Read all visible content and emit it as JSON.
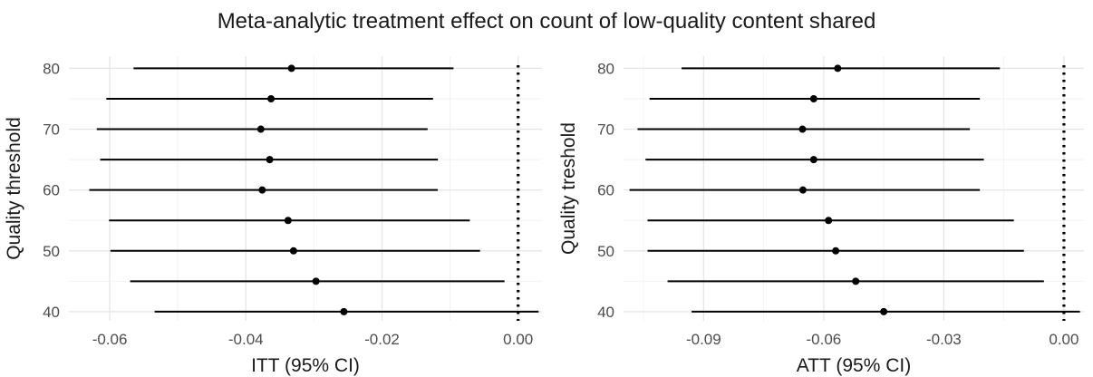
{
  "title": "Meta-analytic treatment effect on count of low-quality content shared",
  "chart_data": [
    {
      "type": "forest",
      "xlabel": "ITT (95% CI)",
      "ylabel": "Quality threshold",
      "xlim": [
        -0.066,
        0.0035
      ],
      "ylim": [
        38.5,
        82
      ],
      "xticks": [
        -0.06,
        -0.04,
        -0.02,
        0.0
      ],
      "xtick_labels": [
        "-0.06",
        "-0.04",
        "-0.02",
        "0.00"
      ],
      "yticks": [
        40,
        50,
        60,
        70,
        80
      ],
      "ytick_labels": [
        "40",
        "50",
        "60",
        "70",
        "80"
      ],
      "reference_line": 0.0,
      "grid": true,
      "points": [
        {
          "y": 80,
          "estimate": -0.0333,
          "lower": -0.0565,
          "upper": -0.0095
        },
        {
          "y": 75,
          "estimate": -0.0363,
          "lower": -0.0605,
          "upper": -0.0125
        },
        {
          "y": 70,
          "estimate": -0.0378,
          "lower": -0.0619,
          "upper": -0.0133
        },
        {
          "y": 65,
          "estimate": -0.0365,
          "lower": -0.0614,
          "upper": -0.0118
        },
        {
          "y": 60,
          "estimate": -0.0376,
          "lower": -0.063,
          "upper": -0.0118
        },
        {
          "y": 55,
          "estimate": -0.0338,
          "lower": -0.0601,
          "upper": -0.0071
        },
        {
          "y": 50,
          "estimate": -0.033,
          "lower": -0.0599,
          "upper": -0.0056
        },
        {
          "y": 45,
          "estimate": -0.0297,
          "lower": -0.057,
          "upper": -0.002
        },
        {
          "y": 40,
          "estimate": -0.0256,
          "lower": -0.0534,
          "upper": 0.003
        }
      ]
    },
    {
      "type": "forest",
      "xlabel": "ATT (95% CI)",
      "ylabel": "Quality treshold",
      "xlim": [
        -0.11,
        0.005
      ],
      "ylim": [
        38.5,
        82
      ],
      "xticks": [
        -0.09,
        -0.06,
        -0.03,
        0.0
      ],
      "xtick_labels": [
        "-0.09",
        "-0.06",
        "-0.03",
        "0.00"
      ],
      "yticks": [
        40,
        50,
        60,
        70,
        80
      ],
      "ytick_labels": [
        "40",
        "50",
        "60",
        "70",
        "80"
      ],
      "reference_line": 0.0,
      "grid": true,
      "points": [
        {
          "y": 80,
          "estimate": -0.0565,
          "lower": -0.0955,
          "upper": -0.016
        },
        {
          "y": 75,
          "estimate": -0.0625,
          "lower": -0.1035,
          "upper": -0.021
        },
        {
          "y": 70,
          "estimate": -0.0653,
          "lower": -0.1065,
          "upper": -0.0235
        },
        {
          "y": 65,
          "estimate": -0.0625,
          "lower": -0.1045,
          "upper": -0.02
        },
        {
          "y": 60,
          "estimate": -0.0652,
          "lower": -0.1085,
          "upper": -0.021
        },
        {
          "y": 55,
          "estimate": -0.0588,
          "lower": -0.104,
          "upper": -0.0125
        },
        {
          "y": 50,
          "estimate": -0.057,
          "lower": -0.104,
          "upper": -0.01
        },
        {
          "y": 45,
          "estimate": -0.052,
          "lower": -0.099,
          "upper": -0.005
        },
        {
          "y": 40,
          "estimate": -0.045,
          "lower": -0.093,
          "upper": 0.004
        }
      ]
    }
  ]
}
